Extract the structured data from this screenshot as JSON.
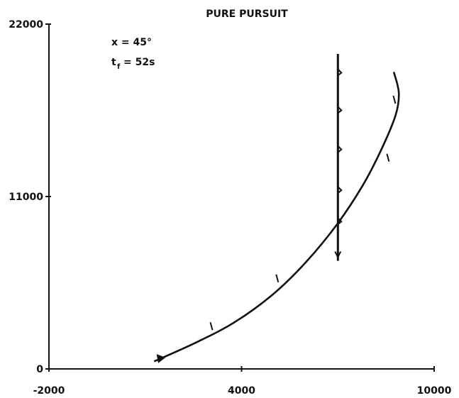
{
  "chart_data": {
    "type": "line",
    "title": "PURE PURSUIT",
    "annotations": {
      "angle": "x = 45°",
      "time_main": "t",
      "time_sub": "f",
      "time_value": "= 52s"
    },
    "x_ticks": [
      {
        "value": -2000,
        "label": "-2000"
      },
      {
        "value": 4000,
        "label": "4000"
      },
      {
        "value": 10000,
        "label": "10000"
      }
    ],
    "y_ticks": [
      {
        "value": 0,
        "label": "0"
      },
      {
        "value": 11000,
        "label": "11000"
      },
      {
        "value": 22000,
        "label": "22000"
      }
    ],
    "xlim": [
      -2000,
      10000
    ],
    "ylim": [
      0,
      22000
    ],
    "grid": false,
    "series": [
      {
        "role": "target",
        "x": [
          7000,
          7000
        ],
        "y": [
          6900,
          20100
        ]
      },
      {
        "role": "pursuer",
        "x": [
          1300,
          2600,
          3800,
          5000,
          6000,
          7000,
          7800,
          8400,
          8800,
          8900,
          8750
        ],
        "y": [
          500,
          1700,
          3000,
          4800,
          6800,
          9300,
          11800,
          14200,
          16200,
          17600,
          18900
        ]
      }
    ],
    "target_marks": {
      "x": [
        7000,
        7000,
        7000,
        7000,
        7000,
        7000
      ],
      "y": [
        9400,
        11400,
        14000,
        16500,
        18900,
        7400
      ]
    },
    "pursuer_marks": {
      "x": [
        1500,
        3050,
        5100,
        8550,
        8750
      ],
      "y": [
        680,
        2750,
        5800,
        13500,
        17200
      ]
    },
    "colors": {
      "ink": "#111111",
      "background": "#ffffff"
    }
  }
}
